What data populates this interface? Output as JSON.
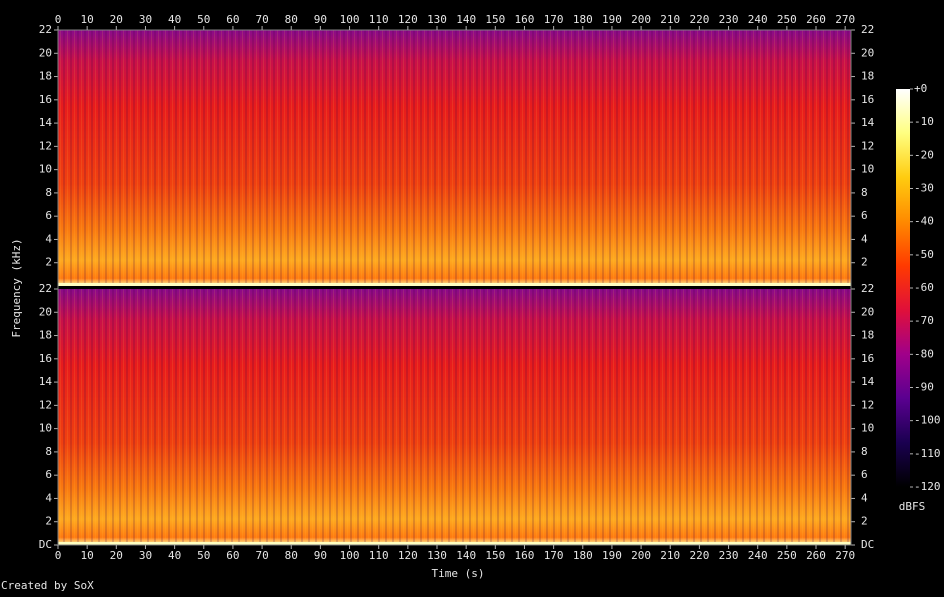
{
  "chart_data": {
    "type": "spectrogram",
    "x_label": "Time (s)",
    "y_label": "Frequency (kHz)",
    "footer": "Created by SoX",
    "xlim": [
      0,
      272
    ],
    "xticks": [
      0,
      10,
      20,
      30,
      40,
      50,
      60,
      70,
      80,
      90,
      100,
      110,
      120,
      130,
      140,
      150,
      160,
      170,
      180,
      190,
      200,
      210,
      220,
      230,
      240,
      250,
      260,
      270
    ],
    "channels": [
      {
        "ylim": [
          0,
          22
        ],
        "yticks": [
          2,
          4,
          6,
          8,
          10,
          12,
          14,
          16,
          18,
          20,
          22
        ]
      },
      {
        "ylim": [
          0,
          22
        ],
        "yticks": [
          {
            "value": 0,
            "label": "DC"
          },
          2,
          4,
          6,
          8,
          10,
          12,
          14,
          16,
          18,
          20,
          22
        ]
      }
    ],
    "colorbar": {
      "label": "dBFS",
      "lim": [
        -120,
        0
      ],
      "ticks": [
        {
          "value": 0,
          "label": "+0"
        },
        -10,
        -20,
        -30,
        -40,
        -50,
        -60,
        -70,
        -80,
        -90,
        -100,
        -110,
        -120
      ],
      "colors": [
        "#000000",
        "#1a0050",
        "#5a0090",
        "#a0008a",
        "#e0103a",
        "#ff3a00",
        "#ff8a00",
        "#ffcc10",
        "#ffff80",
        "#ffffff"
      ]
    }
  }
}
